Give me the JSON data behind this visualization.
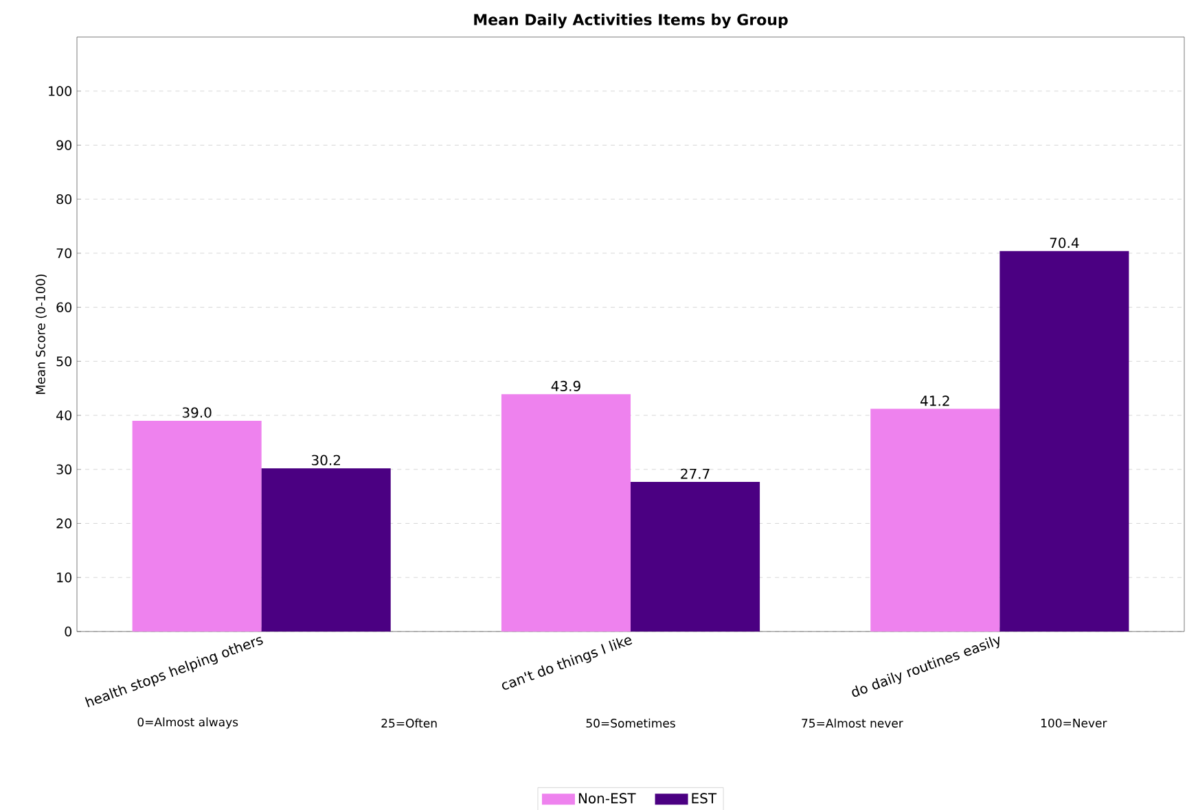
{
  "chart_data": {
    "type": "bar",
    "title": "Mean Daily Activities Items by Group",
    "ylabel": "Mean Score (0-100)",
    "categories": [
      "health stops helping others",
      "can't do things I like",
      "do daily routines easily"
    ],
    "series": [
      {
        "name": "Non-EST",
        "color": "#ee82ee",
        "values": [
          39.0,
          43.9,
          41.2
        ],
        "value_labels": [
          "39.0",
          "43.9",
          "41.2"
        ]
      },
      {
        "name": "EST",
        "color": "#4b0082",
        "values": [
          30.2,
          27.7,
          70.4
        ],
        "value_labels": [
          "30.2",
          "27.7",
          "70.4"
        ]
      }
    ],
    "ylim": [
      0,
      110
    ],
    "yticks": [
      0,
      10,
      20,
      30,
      40,
      50,
      60,
      70,
      80,
      90,
      100
    ],
    "grid": "y",
    "legend": "bottom",
    "annotations": [
      "0=Almost always",
      "25=Often",
      "50=Sometimes",
      "75=Almost never",
      "100=Never"
    ]
  }
}
